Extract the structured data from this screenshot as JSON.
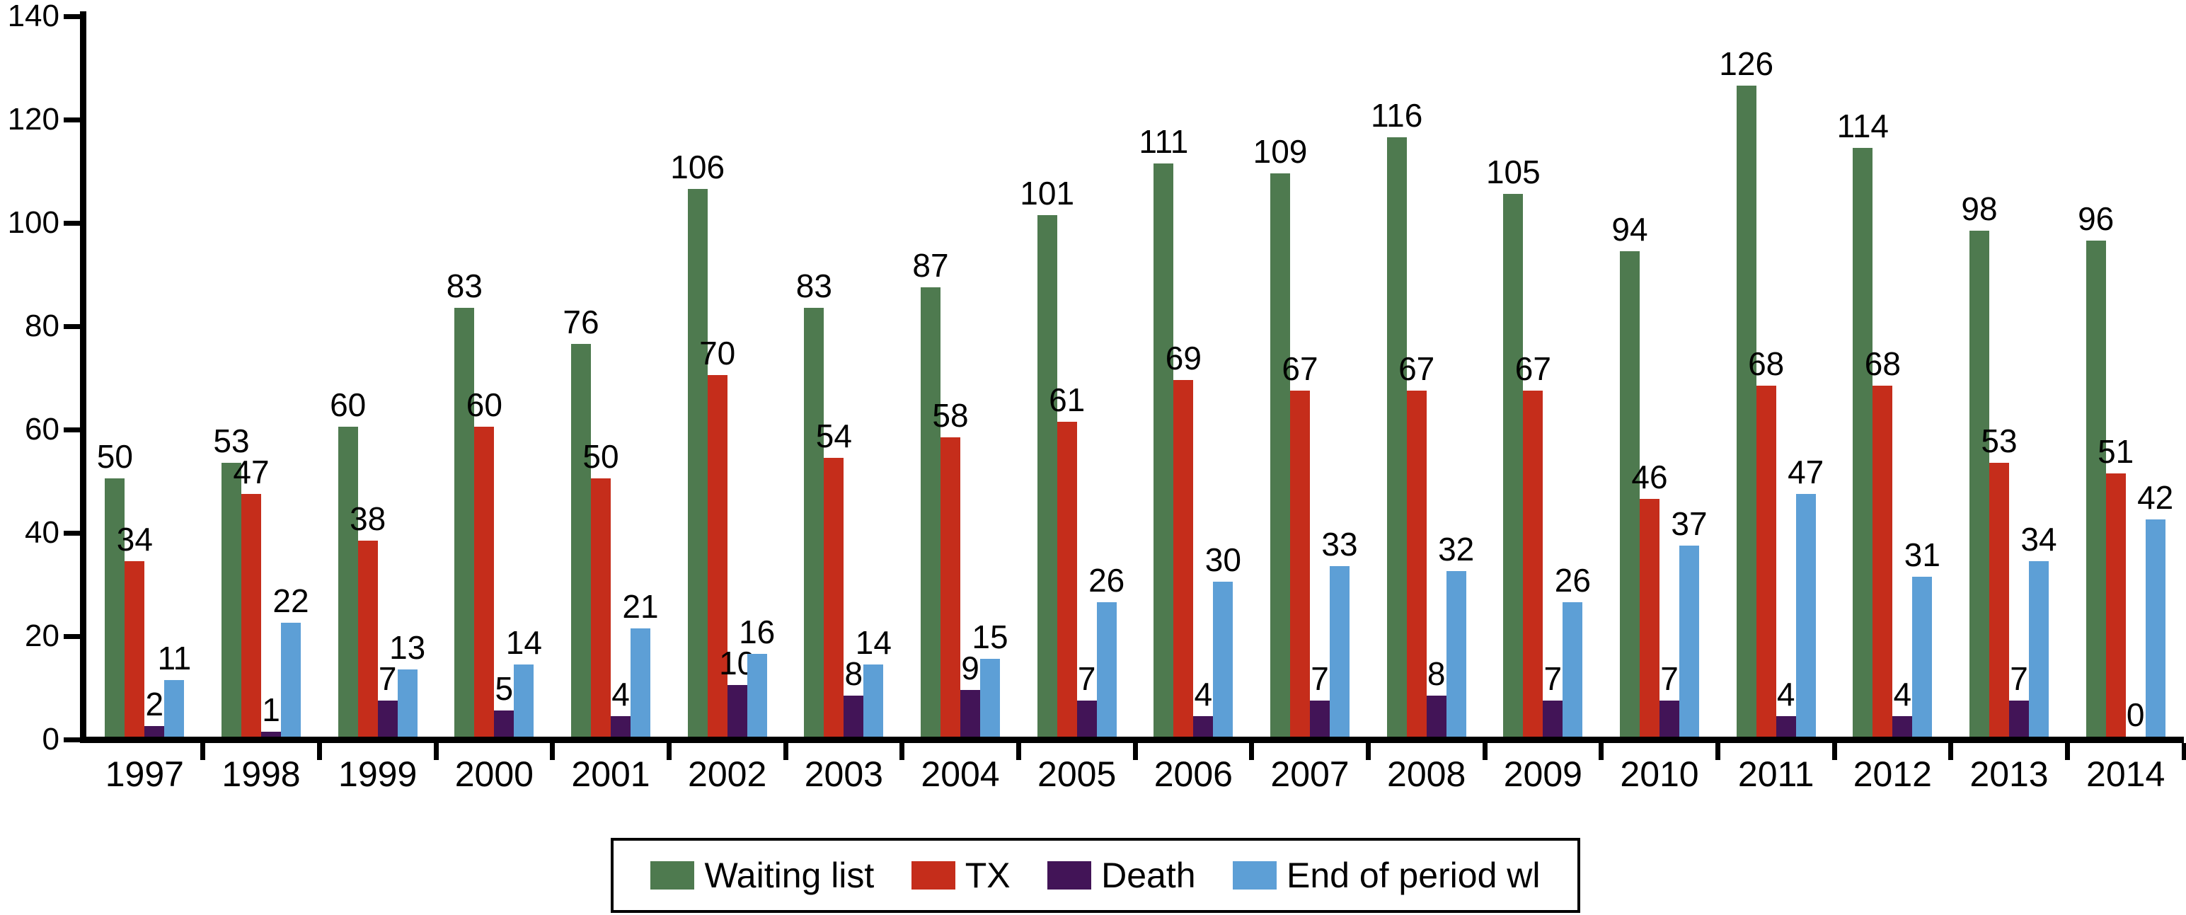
{
  "figure": {
    "background": "#ffffff",
    "axis_color": "#000000"
  },
  "chart_data": {
    "type": "bar",
    "title": "",
    "xlabel": "",
    "ylabel": "",
    "categories": [
      "1997",
      "1998",
      "1999",
      "2000",
      "2001",
      "2002",
      "2003",
      "2004",
      "2005",
      "2006",
      "2007",
      "2008",
      "2009",
      "2010",
      "2011",
      "2012",
      "2013",
      "2014"
    ],
    "series": [
      {
        "name": "Waiting list",
        "key": "waiting-list",
        "color": "#4e7a4f",
        "values": [
          50,
          53,
          60,
          83,
          76,
          106,
          83,
          87,
          101,
          111,
          109,
          116,
          105,
          94,
          126,
          114,
          98,
          96
        ]
      },
      {
        "name": "TX",
        "key": "tx",
        "color": "#c52d1b",
        "values": [
          34,
          47,
          38,
          60,
          50,
          70,
          54,
          58,
          61,
          69,
          67,
          67,
          67,
          46,
          68,
          68,
          53,
          51
        ]
      },
      {
        "name": "Death",
        "key": "death",
        "color": "#421457",
        "values": [
          2,
          1,
          7,
          5,
          4,
          10,
          8,
          9,
          7,
          4,
          7,
          8,
          7,
          7,
          4,
          4,
          7,
          0
        ]
      },
      {
        "name": "End of period wl",
        "key": "end-of-period-wl",
        "color": "#5d9fd6",
        "values": [
          11,
          22,
          13,
          14,
          21,
          16,
          14,
          15,
          26,
          30,
          33,
          32,
          26,
          37,
          47,
          31,
          34,
          42
        ]
      }
    ],
    "ylim": [
      0,
      140
    ],
    "yticks": [
      0,
      20,
      40,
      60,
      80,
      100,
      120,
      140
    ],
    "grid": false,
    "bar_value_labels": true,
    "legend_position": "bottom"
  },
  "legend": {
    "items": [
      {
        "label": "Waiting list",
        "color": "#4e7a4f",
        "key": "waiting-list"
      },
      {
        "label": "TX",
        "color": "#c52d1b",
        "key": "tx"
      },
      {
        "label": "Death",
        "color": "#421457",
        "key": "death"
      },
      {
        "label": "End of period wl",
        "color": "#5d9fd6",
        "key": "end-of-period-wl"
      }
    ]
  }
}
